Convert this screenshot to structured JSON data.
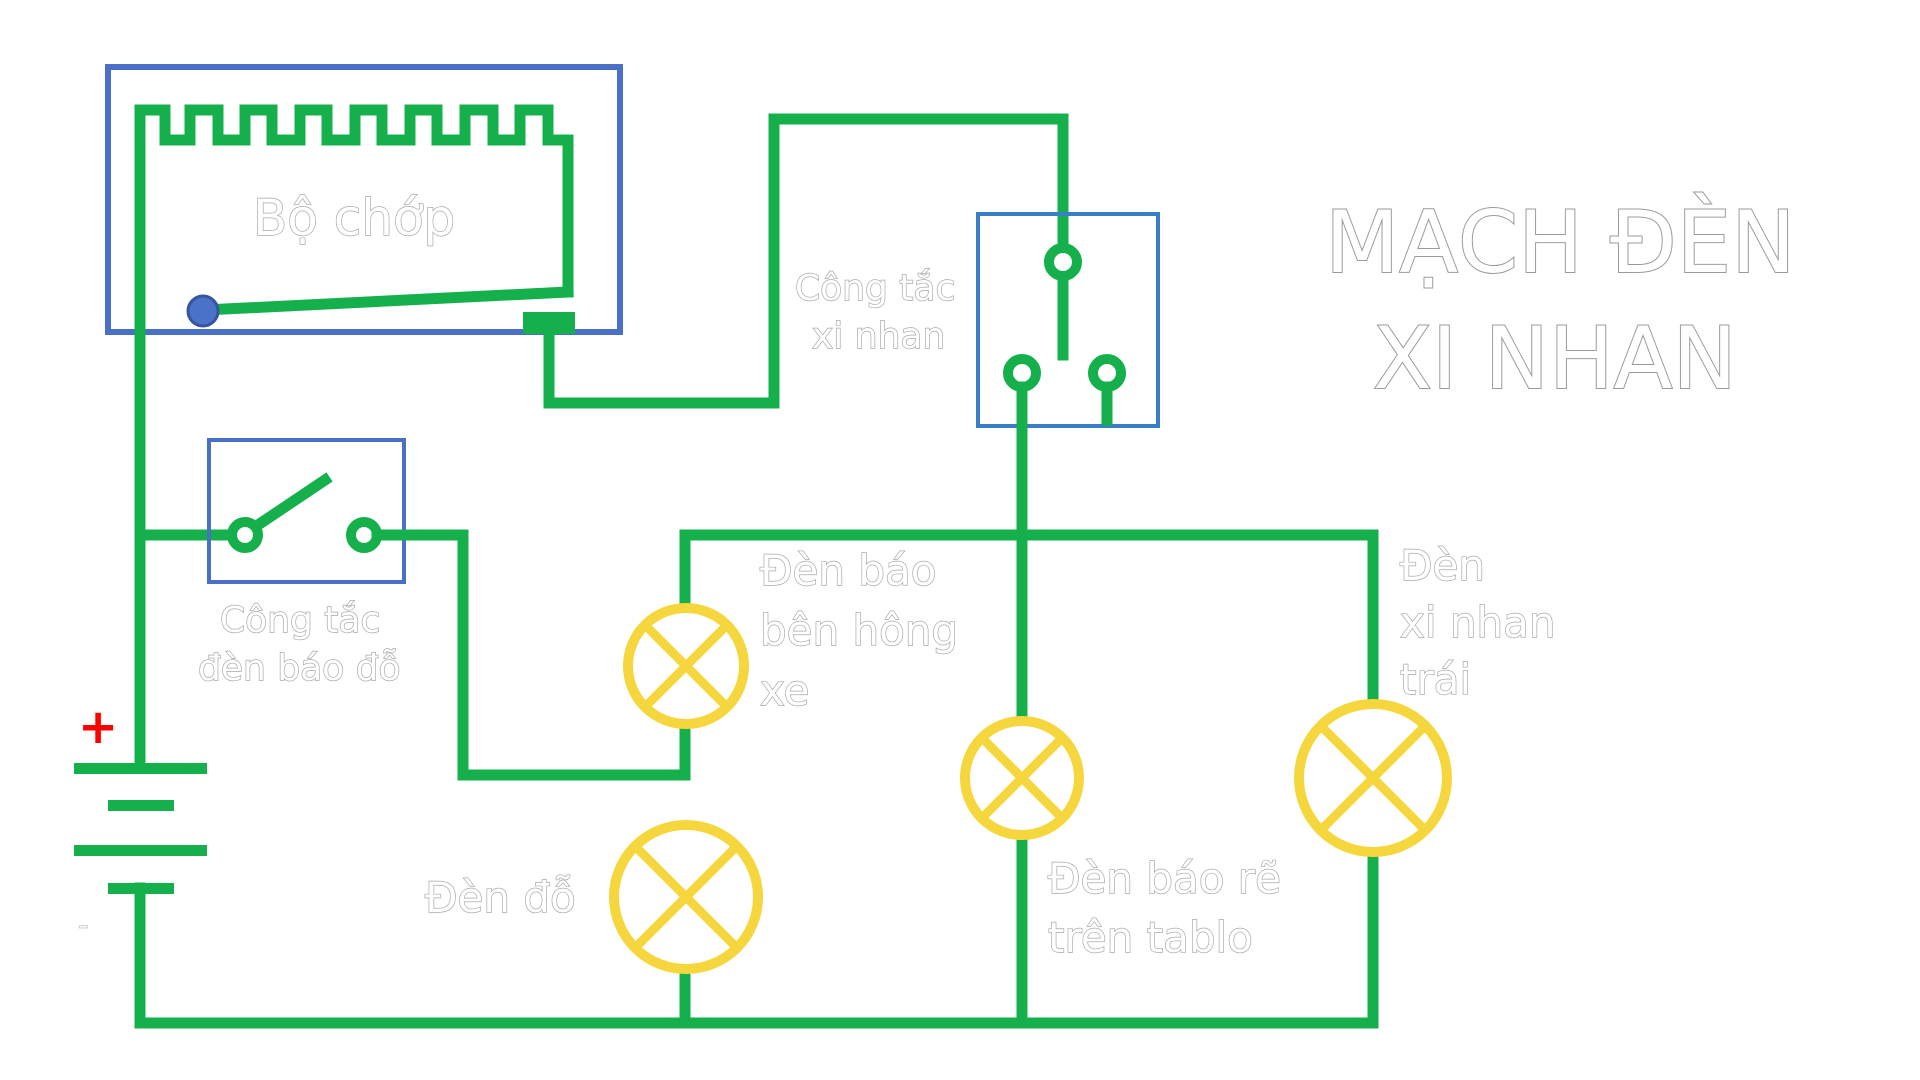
{
  "title": {
    "line1": "MẠCH ĐÈN",
    "line2": "XI NHAN"
  },
  "labels": {
    "flasher": "Bộ chớp",
    "turn_switch": [
      "Công tắc",
      "xi nhan"
    ],
    "hazard_switch": [
      "Công tắc",
      "đèn báo đỗ"
    ],
    "side_lamp": [
      "Đèn báo",
      "bên hông",
      "xe"
    ],
    "left_turn_lamp": [
      "Đèn",
      "xi nhan",
      "trái"
    ],
    "parking_lamp": "Đèn đỗ",
    "dash_lamp": [
      "Đèn báo rẽ",
      "trên tablo"
    ]
  },
  "battery": {
    "positive": "+",
    "negative": "-"
  },
  "colors": {
    "wire": "#15b04c",
    "component_box": "#4a72c8",
    "lamp": "#f5d63d",
    "positive_sign": "#ff0000"
  }
}
